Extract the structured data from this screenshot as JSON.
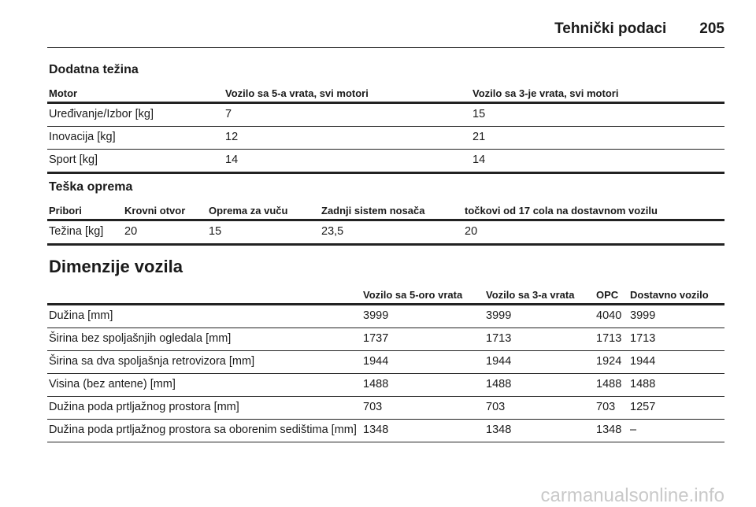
{
  "header": {
    "title": "Tehnički podaci",
    "page": "205"
  },
  "sections": [
    {
      "title": "Dodatna težina",
      "table": {
        "columns": [
          "Motor",
          "Vozilo sa 5-a vrata, svi motori",
          "Vozilo sa 3-je vrata, svi motori"
        ],
        "rows": [
          [
            "Uređivanje/Izbor [kg]",
            "7",
            "15"
          ],
          [
            "Inovacija [kg]",
            "12",
            "21"
          ],
          [
            "Sport [kg]",
            "14",
            "14"
          ]
        ]
      }
    },
    {
      "title": "Teška oprema",
      "table": {
        "columns": [
          "Pribori",
          "Krovni otvor",
          "Oprema za vuču",
          "Zadnji sistem nosača",
          "točkovi od 17 cola na dostavnom vozilu"
        ],
        "rows": [
          [
            "Težina [kg]",
            "20",
            "15",
            "23,5",
            "20"
          ]
        ]
      }
    },
    {
      "title": "Dimenzije vozila",
      "table": {
        "columns": [
          "Vozilo sa 5-oro vrata",
          "Vozilo sa 3-a vrata",
          "OPC",
          "Dostavno vozilo"
        ],
        "rows": [
          [
            "Dužina [mm]",
            "3999",
            "3999",
            "4040",
            "3999"
          ],
          [
            "Širina bez spoljašnjih ogledala [mm]",
            "1737",
            "1713",
            "1713",
            "1713"
          ],
          [
            "Širina sa dva spoljašnja retrovizora [mm]",
            "1944",
            "1944",
            "1924",
            "1944"
          ],
          [
            "Visina (bez antene) [mm]",
            "1488",
            "1488",
            "1488",
            "1488"
          ],
          [
            "Dužina poda prtljažnog prostora [mm]",
            "703",
            "703",
            "703",
            "1257"
          ],
          [
            "Dužina poda prtljažnog prostora sa oborenim sedištima [mm]",
            "1348",
            "1348",
            "1348",
            "–"
          ]
        ]
      }
    }
  ],
  "watermark": "carmanualsonline.info"
}
